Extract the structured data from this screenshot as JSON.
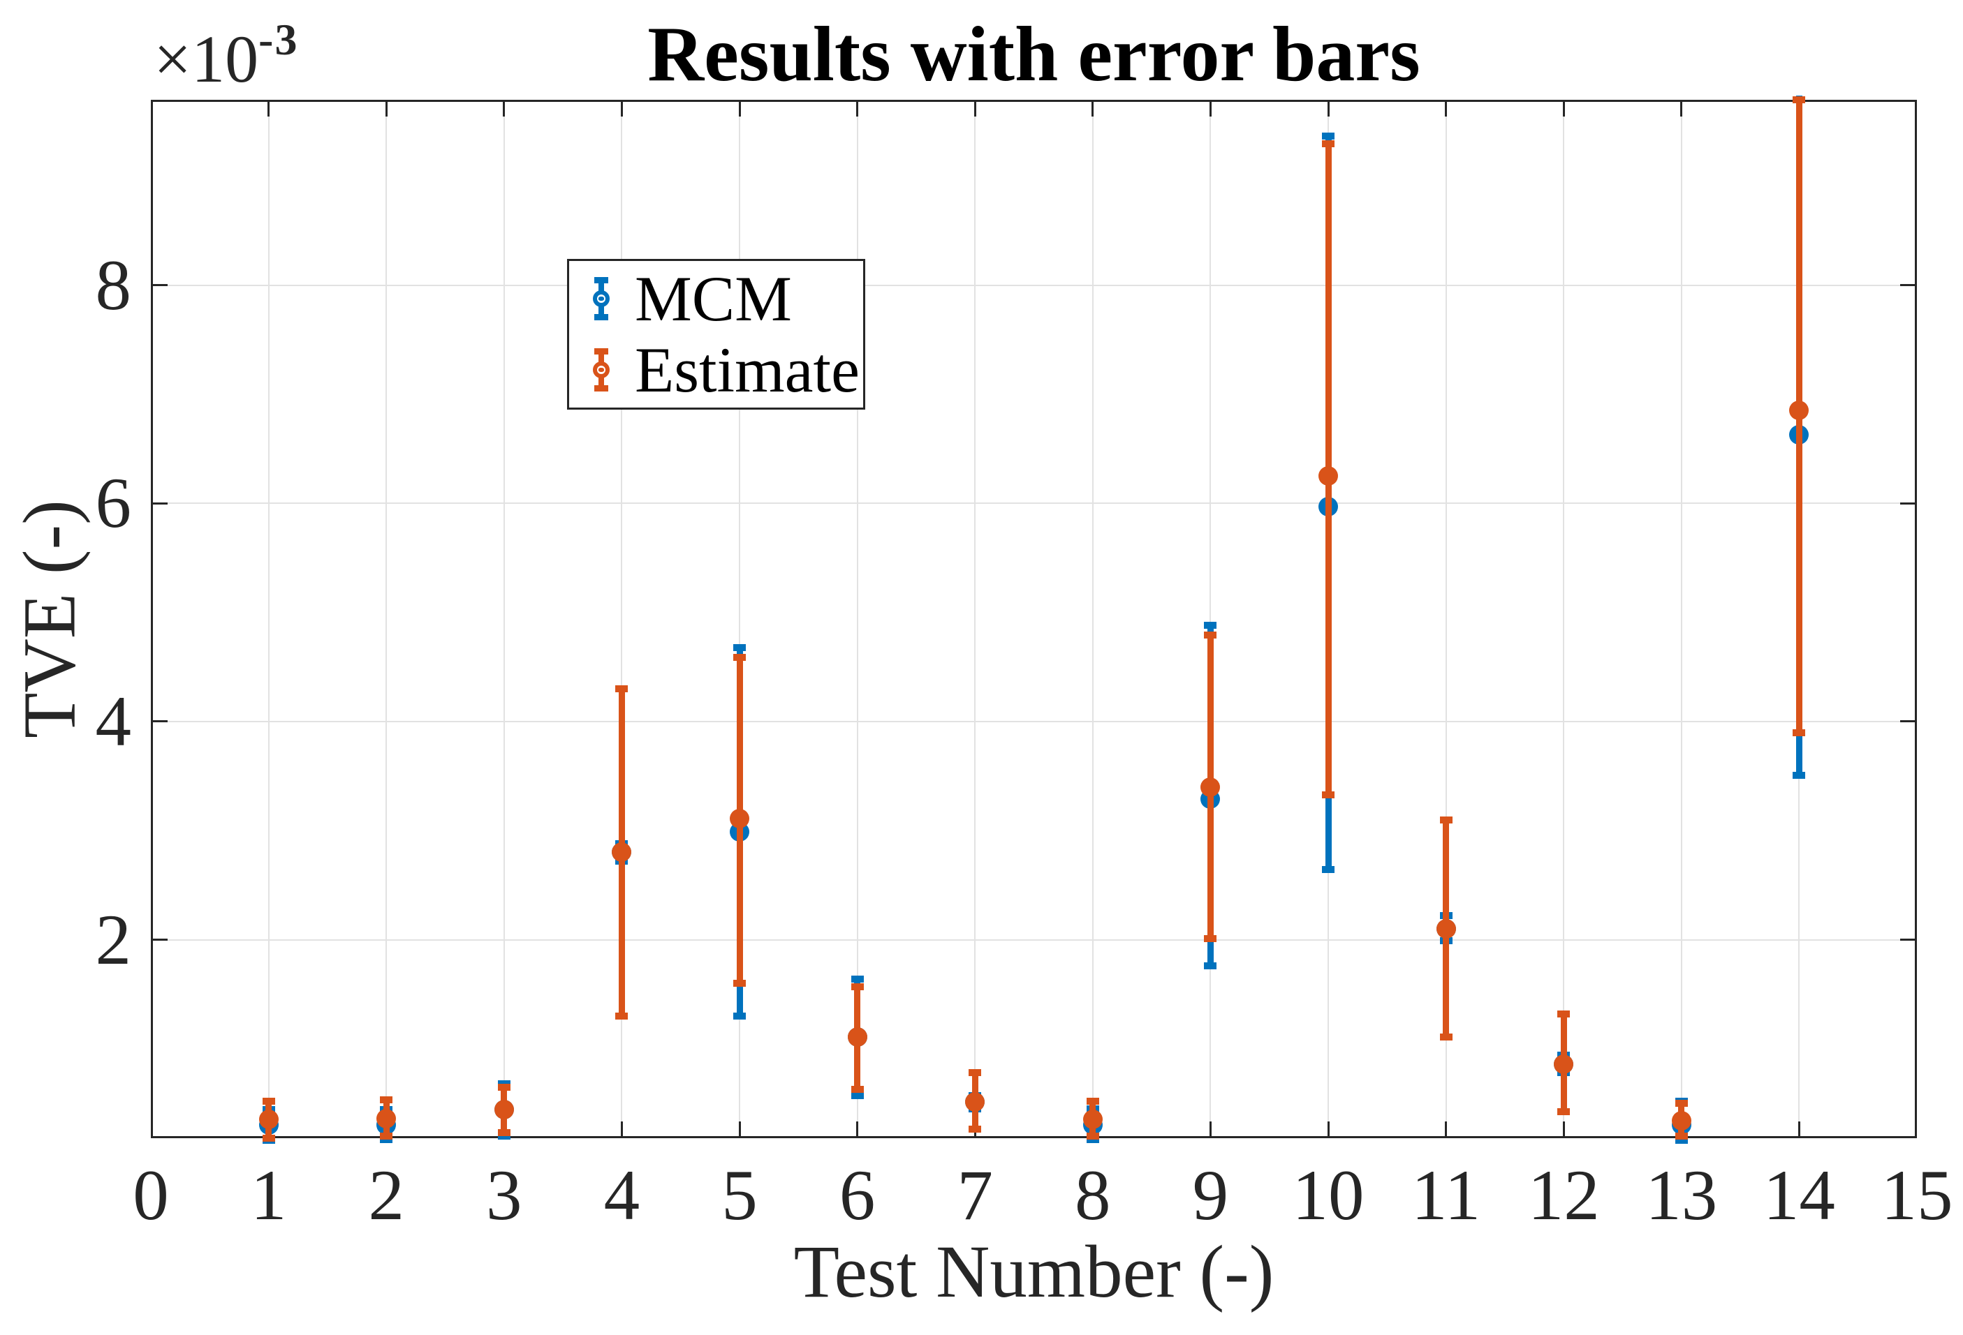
{
  "figure": {
    "title": "Results with error bars",
    "xlabel": "Test Number (-)",
    "ylabel": "TVE (-)",
    "multiplier_base": "×10",
    "multiplier_exp": "-3"
  },
  "legend": {
    "items": [
      {
        "label": "MCM",
        "color": "#0072BD"
      },
      {
        "label": "Estimate",
        "color": "#D95319"
      }
    ]
  },
  "colors": {
    "mcm": "#0072BD",
    "estimate": "#D95319",
    "grid": "#e2e2e2",
    "axis": "#262626",
    "title": "#000000"
  },
  "chart_data": {
    "type": "scatter",
    "subtype": "errorbar",
    "title": "Results with error bars",
    "xlabel": "Test Number (-)",
    "ylabel": "TVE (-)",
    "value_units": "x10^-3",
    "xlim": [
      0,
      15
    ],
    "ylim_e3": [
      0.18,
      9.7
    ],
    "x_ticks": [
      0,
      1,
      2,
      3,
      4,
      5,
      6,
      7,
      8,
      9,
      10,
      11,
      12,
      13,
      14,
      15
    ],
    "y_ticks_e3": [
      2,
      4,
      6,
      8
    ],
    "grid": true,
    "legend_position": "upper left area",
    "x": [
      1,
      2,
      3,
      4,
      5,
      6,
      7,
      8,
      9,
      10,
      11,
      12,
      13,
      14
    ],
    "series": [
      {
        "name": "MCM",
        "color": "#0072BD",
        "values_e3": [
          0.3,
          0.3,
          0.44,
          2.8,
          2.99,
          1.11,
          0.51,
          0.3,
          3.29,
          5.97,
          2.1,
          0.86,
          0.3,
          6.63
        ],
        "err_low_e3": [
          0.16,
          0.17,
          0.2,
          2.72,
          1.3,
          0.57,
          0.45,
          0.17,
          1.76,
          2.64,
          1.99,
          0.78,
          0.16,
          3.51
        ],
        "err_high_e3": [
          0.44,
          0.44,
          0.68,
          2.88,
          4.68,
          1.64,
          0.57,
          0.45,
          4.88,
          9.37,
          2.22,
          0.94,
          0.52,
          9.78
        ]
      },
      {
        "name": "Estimate",
        "color": "#D95319",
        "values_e3": [
          0.35,
          0.36,
          0.44,
          2.8,
          3.11,
          1.11,
          0.51,
          0.35,
          3.4,
          6.25,
          2.1,
          0.86,
          0.34,
          6.85
        ],
        "err_low_e3": [
          0.18,
          0.2,
          0.23,
          1.3,
          1.6,
          0.63,
          0.26,
          0.2,
          2.01,
          3.33,
          1.11,
          0.42,
          0.2,
          3.9
        ],
        "err_high_e3": [
          0.52,
          0.53,
          0.65,
          4.3,
          4.59,
          1.57,
          0.78,
          0.52,
          4.79,
          9.3,
          3.1,
          1.32,
          0.5,
          9.7
        ]
      }
    ]
  }
}
